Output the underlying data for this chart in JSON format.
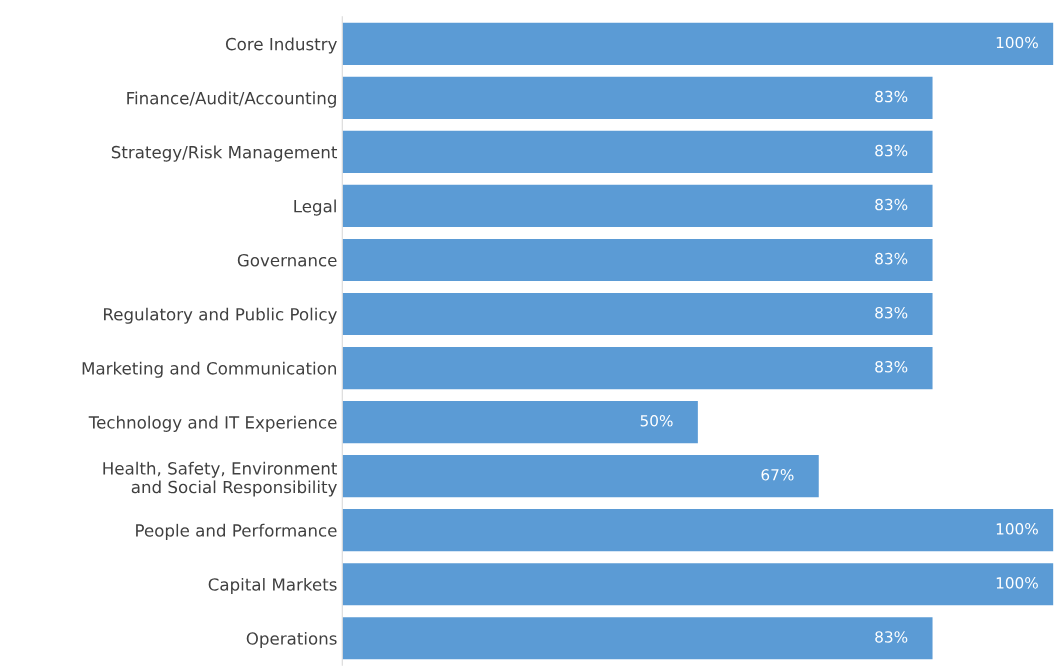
{
  "chart_data": {
    "type": "bar",
    "orientation": "horizontal",
    "categories": [
      "Core Industry",
      "Finance/Audit/Accounting",
      "Strategy/Risk Management",
      "Legal",
      "Governance",
      "Regulatory and Public Policy",
      "Marketing and Communication",
      "Technology and IT Experience",
      "Health, Safety, Environment\nand Social Responsibility",
      "People and Performance",
      "Capital Markets",
      "Operations"
    ],
    "values": [
      100,
      83,
      83,
      83,
      83,
      83,
      83,
      50,
      67,
      100,
      100,
      83
    ],
    "value_labels": [
      "100%",
      "83%",
      "83%",
      "83%",
      "83%",
      "83%",
      "83%",
      "50%",
      "67%",
      "100%",
      "100%",
      "83%"
    ],
    "color": "#5b9bd5",
    "xlim": [
      0,
      100
    ],
    "tick_labels": "y",
    "grid": false,
    "legend": false
  }
}
